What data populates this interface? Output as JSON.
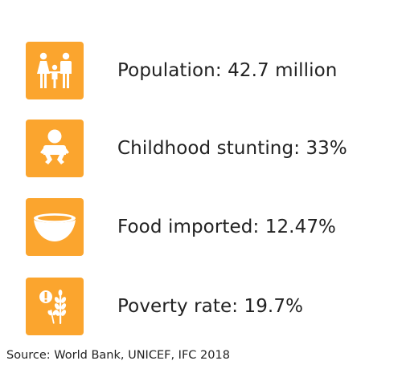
{
  "colors": {
    "icon_background": "#FBA52E",
    "icon_foreground": "#FFFFFF",
    "text": "#222222"
  },
  "stats": [
    {
      "icon": "family-icon",
      "label": "Population: 42.7 million"
    },
    {
      "icon": "baby-icon",
      "label": "Childhood stunting: 33%"
    },
    {
      "icon": "bowl-icon",
      "label": "Food imported: 12.47%"
    },
    {
      "icon": "wheat-alert-icon",
      "label": "Poverty rate: 19.7%"
    }
  ],
  "source": "Source: World Bank, UNICEF, IFC 2018"
}
